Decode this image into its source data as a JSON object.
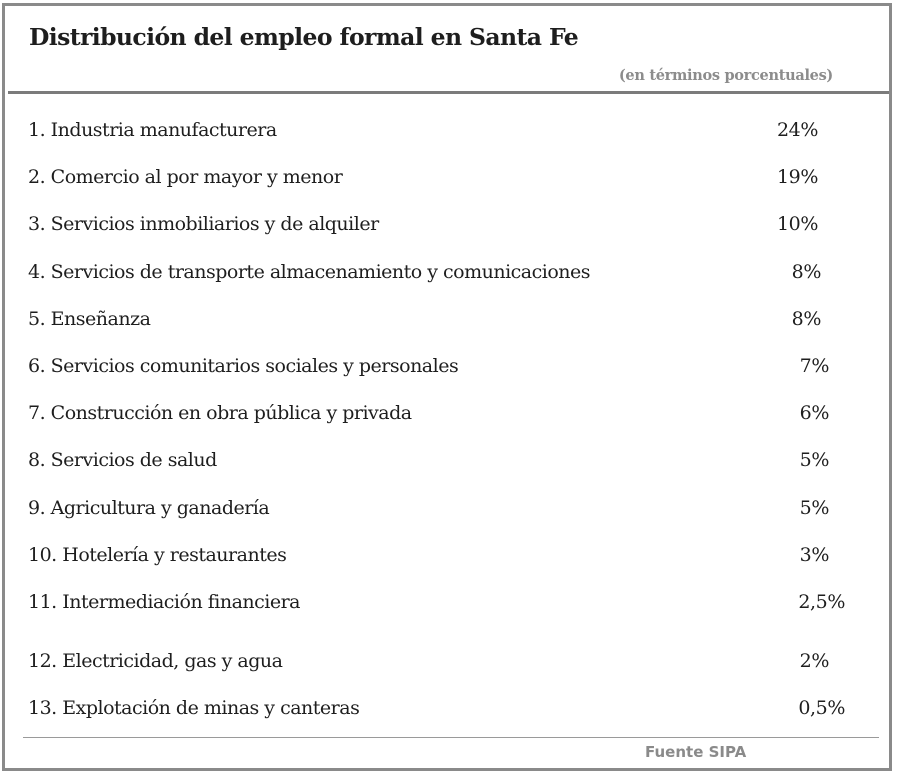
{
  "chart_data": {
    "type": "table",
    "title": "Distribución del empleo formal en Santa Fe",
    "subtitle": "(en términos porcentuales)",
    "source": "Fuente SIPA",
    "unit": "%",
    "rows": [
      {
        "label": "1. Industria manufacturera",
        "value": 24,
        "display": "24%"
      },
      {
        "label": "2. Comercio al por mayor y menor",
        "value": 19,
        "display": "19%"
      },
      {
        "label": "3. Servicios inmobiliarios y de alquiler",
        "value": 10,
        "display": "10%"
      },
      {
        "label": "4. Servicios de transporte almacenamiento y comunicaciones",
        "value": 8,
        "display": "8%"
      },
      {
        "label": "5. Enseñanza",
        "value": 8,
        "display": "8%"
      },
      {
        "label": "6. Servicios comunitarios sociales y personales",
        "value": 7,
        "display": "7%"
      },
      {
        "label": "7. Construcción en obra pública y privada",
        "value": 6,
        "display": "6%"
      },
      {
        "label": "8. Servicios de salud",
        "value": 5,
        "display": "5%"
      },
      {
        "label": "9. Agricultura y ganadería",
        "value": 5,
        "display": "5%"
      },
      {
        "label": "10. Hotelería y restaurantes",
        "value": 3,
        "display": "3%"
      },
      {
        "label": "11. Intermediación financiera",
        "value": 2.5,
        "display": "2,5%"
      },
      {
        "label": "12. Electricidad, gas y agua",
        "value": 2,
        "display": "2%"
      },
      {
        "label": "13. Explotación de minas y canteras",
        "value": 0.5,
        "display": "0,5%"
      }
    ]
  }
}
